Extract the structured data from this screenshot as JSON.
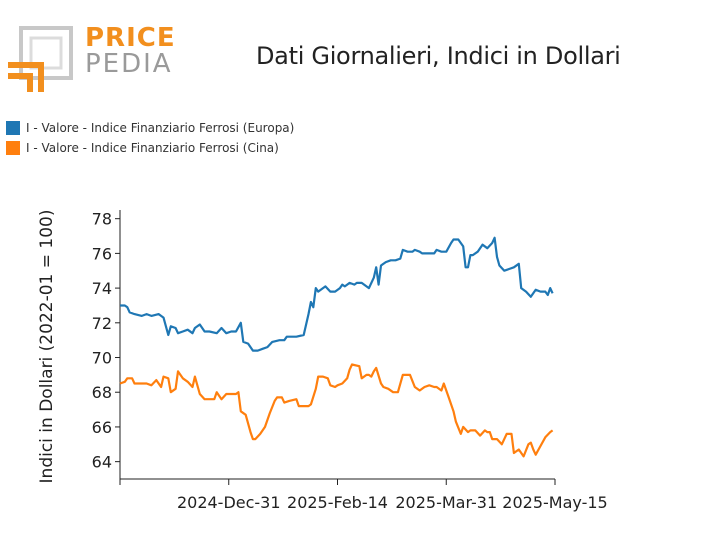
{
  "logo": {
    "line1": "PRICE",
    "line2": "PEDIA",
    "brand_color": "#f28f1e",
    "grey_color": "#9a9a9a"
  },
  "chart_data": {
    "type": "line",
    "title": "Dati Giornalieri, Indici in Dollari",
    "xlabel": "",
    "ylabel": "Indici in Dollari (2022-01 = 100)",
    "x_ticks": [
      "2024-Dec-31",
      "2025-Feb-14",
      "2025-Mar-31",
      "2025-May-15"
    ],
    "xlim": [
      "2024-11-16",
      "2025-05-15"
    ],
    "ylim": [
      63,
      78.5
    ],
    "y_ticks": [
      64,
      66,
      68,
      70,
      72,
      74,
      76,
      78
    ],
    "grid": false,
    "legend_position": "top-left",
    "series": [
      {
        "name": "I - Valore - Indice Finanziario Ferrosi (Europa)",
        "color": "#1f77b4",
        "points": [
          [
            "2024-11-16",
            73.0
          ],
          [
            "2024-11-18",
            73.0
          ],
          [
            "2024-11-19",
            72.9
          ],
          [
            "2024-11-20",
            72.6
          ],
          [
            "2024-11-22",
            72.5
          ],
          [
            "2024-11-25",
            72.4
          ],
          [
            "2024-11-27",
            72.5
          ],
          [
            "2024-11-29",
            72.4
          ],
          [
            "2024-12-02",
            72.5
          ],
          [
            "2024-12-04",
            72.3
          ],
          [
            "2024-12-06",
            71.3
          ],
          [
            "2024-12-07",
            71.8
          ],
          [
            "2024-12-09",
            71.7
          ],
          [
            "2024-12-10",
            71.4
          ],
          [
            "2024-12-12",
            71.5
          ],
          [
            "2024-12-14",
            71.6
          ],
          [
            "2024-12-16",
            71.4
          ],
          [
            "2024-12-17",
            71.7
          ],
          [
            "2024-12-19",
            71.9
          ],
          [
            "2024-12-21",
            71.5
          ],
          [
            "2024-12-23",
            71.5
          ],
          [
            "2024-12-26",
            71.4
          ],
          [
            "2024-12-28",
            71.7
          ],
          [
            "2024-12-30",
            71.4
          ],
          [
            "2025-01-01",
            71.5
          ],
          [
            "2025-01-03",
            71.5
          ],
          [
            "2025-01-05",
            72.0
          ],
          [
            "2025-01-06",
            70.9
          ],
          [
            "2025-01-08",
            70.8
          ],
          [
            "2025-01-10",
            70.4
          ],
          [
            "2025-01-12",
            70.4
          ],
          [
            "2025-01-14",
            70.5
          ],
          [
            "2025-01-16",
            70.6
          ],
          [
            "2025-01-18",
            70.9
          ],
          [
            "2025-01-21",
            71.0
          ],
          [
            "2025-01-23",
            71.0
          ],
          [
            "2025-01-24",
            71.2
          ],
          [
            "2025-01-26",
            71.2
          ],
          [
            "2025-01-28",
            71.2
          ],
          [
            "2025-01-31",
            71.3
          ],
          [
            "2025-02-02",
            72.5
          ],
          [
            "2025-02-03",
            73.2
          ],
          [
            "2025-02-04",
            72.9
          ],
          [
            "2025-02-05",
            74.0
          ],
          [
            "2025-02-06",
            73.8
          ],
          [
            "2025-02-08",
            74.0
          ],
          [
            "2025-02-09",
            74.1
          ],
          [
            "2025-02-11",
            73.8
          ],
          [
            "2025-02-13",
            73.8
          ],
          [
            "2025-02-15",
            74.0
          ],
          [
            "2025-02-16",
            74.2
          ],
          [
            "2025-02-17",
            74.1
          ],
          [
            "2025-02-19",
            74.3
          ],
          [
            "2025-02-21",
            74.2
          ],
          [
            "2025-02-22",
            74.3
          ],
          [
            "2025-02-24",
            74.3
          ],
          [
            "2025-02-27",
            74.0
          ],
          [
            "2025-03-01",
            74.6
          ],
          [
            "2025-03-02",
            75.2
          ],
          [
            "2025-03-03",
            74.2
          ],
          [
            "2025-03-04",
            75.3
          ],
          [
            "2025-03-06",
            75.5
          ],
          [
            "2025-03-08",
            75.6
          ],
          [
            "2025-03-10",
            75.6
          ],
          [
            "2025-03-12",
            75.7
          ],
          [
            "2025-03-13",
            76.2
          ],
          [
            "2025-03-15",
            76.1
          ],
          [
            "2025-03-17",
            76.1
          ],
          [
            "2025-03-18",
            76.2
          ],
          [
            "2025-03-20",
            76.1
          ],
          [
            "2025-03-21",
            76.0
          ],
          [
            "2025-03-23",
            76.0
          ],
          [
            "2025-03-26",
            76.0
          ],
          [
            "2025-03-27",
            76.2
          ],
          [
            "2025-03-29",
            76.1
          ],
          [
            "2025-03-31",
            76.1
          ],
          [
            "2025-04-02",
            76.6
          ],
          [
            "2025-04-03",
            76.8
          ],
          [
            "2025-04-05",
            76.8
          ],
          [
            "2025-04-07",
            76.4
          ],
          [
            "2025-04-08",
            75.2
          ],
          [
            "2025-04-09",
            75.2
          ],
          [
            "2025-04-10",
            75.9
          ],
          [
            "2025-04-11",
            75.9
          ],
          [
            "2025-04-13",
            76.1
          ],
          [
            "2025-04-15",
            76.5
          ],
          [
            "2025-04-17",
            76.3
          ],
          [
            "2025-04-19",
            76.6
          ],
          [
            "2025-04-20",
            76.9
          ],
          [
            "2025-04-21",
            75.8
          ],
          [
            "2025-04-22",
            75.3
          ],
          [
            "2025-04-24",
            75.0
          ],
          [
            "2025-04-26",
            75.1
          ],
          [
            "2025-04-28",
            75.2
          ],
          [
            "2025-04-30",
            75.4
          ],
          [
            "2025-05-01",
            74.0
          ],
          [
            "2025-05-03",
            73.8
          ],
          [
            "2025-05-05",
            73.5
          ],
          [
            "2025-05-07",
            73.9
          ],
          [
            "2025-05-09",
            73.8
          ],
          [
            "2025-05-11",
            73.8
          ],
          [
            "2025-05-12",
            73.6
          ],
          [
            "2025-05-13",
            74.0
          ],
          [
            "2025-05-14",
            73.7
          ]
        ]
      },
      {
        "name": "I - Valore - Indice Finanziario Ferrosi (Cina)",
        "color": "#ff7f0e",
        "points": [
          [
            "2024-11-16",
            68.5
          ],
          [
            "2024-11-18",
            68.6
          ],
          [
            "2024-11-19",
            68.8
          ],
          [
            "2024-11-21",
            68.8
          ],
          [
            "2024-11-22",
            68.5
          ],
          [
            "2024-11-25",
            68.5
          ],
          [
            "2024-11-27",
            68.5
          ],
          [
            "2024-11-29",
            68.4
          ],
          [
            "2024-12-01",
            68.7
          ],
          [
            "2024-12-03",
            68.3
          ],
          [
            "2024-12-04",
            68.9
          ],
          [
            "2024-12-06",
            68.8
          ],
          [
            "2024-12-07",
            68.0
          ],
          [
            "2024-12-09",
            68.2
          ],
          [
            "2024-12-10",
            69.2
          ],
          [
            "2024-12-12",
            68.8
          ],
          [
            "2024-12-14",
            68.6
          ],
          [
            "2024-12-16",
            68.3
          ],
          [
            "2024-12-17",
            68.9
          ],
          [
            "2024-12-19",
            67.9
          ],
          [
            "2024-12-21",
            67.6
          ],
          [
            "2024-12-23",
            67.6
          ],
          [
            "2024-12-25",
            67.6
          ],
          [
            "2024-12-26",
            68.0
          ],
          [
            "2024-12-28",
            67.6
          ],
          [
            "2024-12-30",
            67.9
          ],
          [
            "2025-01-01",
            67.9
          ],
          [
            "2025-01-03",
            67.9
          ],
          [
            "2025-01-04",
            68.0
          ],
          [
            "2025-01-05",
            66.9
          ],
          [
            "2025-01-07",
            66.7
          ],
          [
            "2025-01-09",
            65.7
          ],
          [
            "2025-01-10",
            65.3
          ],
          [
            "2025-01-11",
            65.3
          ],
          [
            "2025-01-13",
            65.6
          ],
          [
            "2025-01-15",
            66.0
          ],
          [
            "2025-01-17",
            66.8
          ],
          [
            "2025-01-19",
            67.5
          ],
          [
            "2025-01-20",
            67.7
          ],
          [
            "2025-01-22",
            67.7
          ],
          [
            "2025-01-23",
            67.4
          ],
          [
            "2025-01-25",
            67.5
          ],
          [
            "2025-01-28",
            67.6
          ],
          [
            "2025-01-29",
            67.2
          ],
          [
            "2025-01-31",
            67.2
          ],
          [
            "2025-02-02",
            67.2
          ],
          [
            "2025-02-03",
            67.3
          ],
          [
            "2025-02-05",
            68.2
          ],
          [
            "2025-02-06",
            68.9
          ],
          [
            "2025-02-08",
            68.9
          ],
          [
            "2025-02-10",
            68.8
          ],
          [
            "2025-02-11",
            68.4
          ],
          [
            "2025-02-13",
            68.3
          ],
          [
            "2025-02-14",
            68.4
          ],
          [
            "2025-02-16",
            68.5
          ],
          [
            "2025-02-18",
            68.8
          ],
          [
            "2025-02-19",
            69.3
          ],
          [
            "2025-02-20",
            69.6
          ],
          [
            "2025-02-23",
            69.5
          ],
          [
            "2025-02-24",
            68.8
          ],
          [
            "2025-02-26",
            69.0
          ],
          [
            "2025-02-27",
            69.0
          ],
          [
            "2025-02-28",
            68.9
          ],
          [
            "2025-03-01",
            69.2
          ],
          [
            "2025-03-02",
            69.4
          ],
          [
            "2025-03-04",
            68.5
          ],
          [
            "2025-03-05",
            68.3
          ],
          [
            "2025-03-07",
            68.2
          ],
          [
            "2025-03-09",
            68.0
          ],
          [
            "2025-03-11",
            68.0
          ],
          [
            "2025-03-13",
            69.0
          ],
          [
            "2025-03-16",
            69.0
          ],
          [
            "2025-03-18",
            68.3
          ],
          [
            "2025-03-20",
            68.1
          ],
          [
            "2025-03-22",
            68.3
          ],
          [
            "2025-03-24",
            68.4
          ],
          [
            "2025-03-26",
            68.3
          ],
          [
            "2025-03-27",
            68.3
          ],
          [
            "2025-03-29",
            68.1
          ],
          [
            "2025-03-30",
            68.5
          ],
          [
            "2025-04-01",
            67.7
          ],
          [
            "2025-04-03",
            66.9
          ],
          [
            "2025-04-04",
            66.3
          ],
          [
            "2025-04-06",
            65.6
          ],
          [
            "2025-04-07",
            66.0
          ],
          [
            "2025-04-09",
            65.7
          ],
          [
            "2025-04-10",
            65.8
          ],
          [
            "2025-04-12",
            65.8
          ],
          [
            "2025-04-14",
            65.5
          ],
          [
            "2025-04-16",
            65.8
          ],
          [
            "2025-04-17",
            65.7
          ],
          [
            "2025-04-18",
            65.7
          ],
          [
            "2025-04-19",
            65.3
          ],
          [
            "2025-04-21",
            65.3
          ],
          [
            "2025-04-23",
            65.0
          ],
          [
            "2025-04-25",
            65.6
          ],
          [
            "2025-04-27",
            65.6
          ],
          [
            "2025-04-28",
            64.5
          ],
          [
            "2025-04-30",
            64.7
          ],
          [
            "2025-05-02",
            64.3
          ],
          [
            "2025-05-04",
            65.0
          ],
          [
            "2025-05-05",
            65.1
          ],
          [
            "2025-05-06",
            64.7
          ],
          [
            "2025-05-07",
            64.4
          ],
          [
            "2025-05-09",
            64.9
          ],
          [
            "2025-05-11",
            65.4
          ],
          [
            "2025-05-13",
            65.7
          ],
          [
            "2025-05-14",
            65.8
          ]
        ]
      }
    ]
  }
}
